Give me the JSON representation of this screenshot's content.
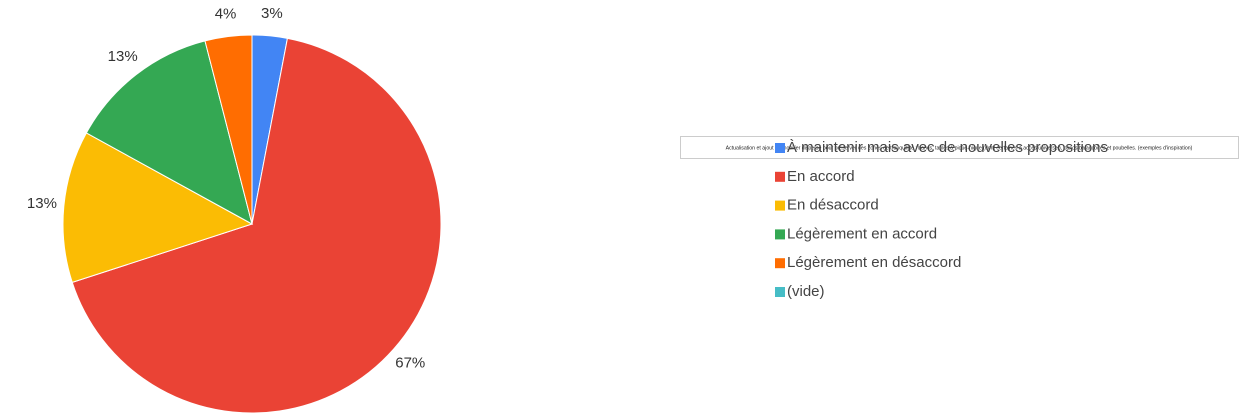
{
  "chart_data": {
    "type": "pie",
    "legend_title": "Actualisation et ajout de mobilier dispersé pour préserver des zones de tranquillité : bancs, tables à pique-nique (dont certaines à accès universel), bancs balançoires et poubelles. (exemples d'inspiration)",
    "categories": [
      "À maintenir mais avec de nouvelles propositions",
      "En accord",
      "En désaccord",
      "Légèrement en accord",
      "Légèrement en désaccord",
      "(vide)"
    ],
    "values": [
      3,
      67,
      13,
      13,
      4,
      0
    ],
    "value_labels": [
      "3%",
      "67%",
      "13%",
      "13%",
      "4%",
      null
    ],
    "colors": [
      "#4285f4",
      "#ea4335",
      "#fbbc04",
      "#34a853",
      "#ff6d01",
      "#46bdc6"
    ],
    "legend": "right"
  }
}
